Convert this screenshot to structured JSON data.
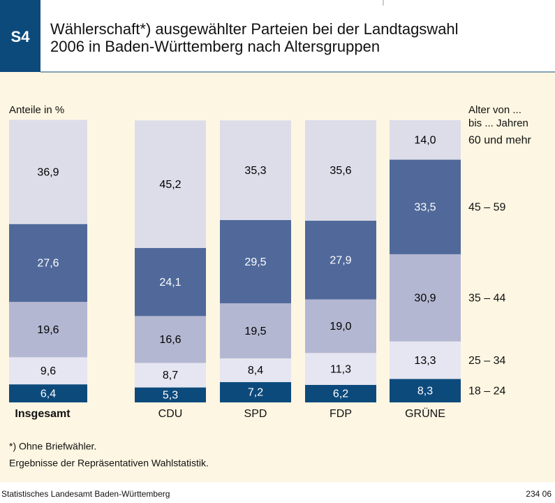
{
  "chart_data": {
    "type": "stacked_bar",
    "badge": "S4",
    "title": [
      "Wählerschaft*) ausgewählter Parteien bei der Landtagswahl",
      "2006 in Baden-Württemberg nach Altersgruppen"
    ],
    "y_label": "Anteile in %",
    "legend_title": [
      "Alter von ...",
      "bis ... Jahren"
    ],
    "categories": [
      "Insgesamt",
      "CDU",
      "SPD",
      "FDP",
      "GRÜNE"
    ],
    "ylim": [
      0,
      100
    ],
    "series": [
      {
        "name": "18 – 24",
        "color": "#0d4a7c",
        "text_color": "#ffffff",
        "values": [
          6.4,
          5.3,
          7.2,
          6.2,
          8.3
        ],
        "value_labels": [
          "6,4",
          "5,3",
          "7,2",
          "6,2",
          "8,3"
        ]
      },
      {
        "name": "25 – 34",
        "color": "#e5e6f1",
        "text_color": "#000000",
        "values": [
          9.6,
          8.7,
          8.4,
          11.3,
          13.3
        ],
        "value_labels": [
          "9,6",
          "8,7",
          "8,4",
          "11,3",
          "13,3"
        ]
      },
      {
        "name": "35 – 44",
        "color": "#b4b7d2",
        "text_color": "#000000",
        "values": [
          19.6,
          16.6,
          19.5,
          19.0,
          30.9
        ],
        "value_labels": [
          "19,6",
          "16,6",
          "19,5",
          "19,0",
          "30,9"
        ]
      },
      {
        "name": "45 – 59",
        "color": "#50699a",
        "text_color": "#ffffff",
        "values": [
          27.6,
          24.1,
          29.5,
          27.9,
          33.5
        ],
        "value_labels": [
          "27,6",
          "24,1",
          "29,5",
          "27,9",
          "33,5"
        ]
      },
      {
        "name": "60 und mehr",
        "color": "#dcdde9",
        "text_color": "#000000",
        "values": [
          36.9,
          45.2,
          35.3,
          35.6,
          14.0
        ],
        "value_labels": [
          "36,9",
          "45,2",
          "35,3",
          "35,6",
          "14,0"
        ]
      }
    ],
    "footnotes": [
      "*) Ohne Briefwähler.",
      "Ergebnisse der Repräsentativen Wahlstatistik."
    ],
    "source": "Statistisches Landesamt Baden-Württemberg",
    "code": "234 06"
  }
}
